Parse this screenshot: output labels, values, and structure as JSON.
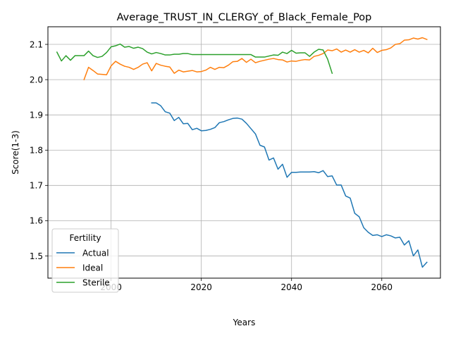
{
  "chart_data": {
    "type": "line",
    "title": "Average_TRUST_IN_CLERGY_of_Black_Female_Pop",
    "xlabel": "Years",
    "ylabel": "Score(1-3)",
    "xlim": [
      1986,
      2073
    ],
    "ylim": [
      1.437,
      2.15
    ],
    "xticks": [
      2000,
      2020,
      2040,
      2060
    ],
    "yticks": [
      1.5,
      1.6,
      1.7,
      1.8,
      1.9,
      2.0,
      2.1
    ],
    "grid": true,
    "legend": {
      "title": "Fertility",
      "placement": "lower-left"
    },
    "series": [
      {
        "name": "Actual",
        "color": "#1f77b4",
        "x": [
          2009,
          2010,
          2011,
          2012,
          2013,
          2014,
          2015,
          2016,
          2017,
          2018,
          2019,
          2020,
          2021,
          2022,
          2023,
          2024,
          2025,
          2026,
          2027,
          2028,
          2029,
          2030,
          2031,
          2032,
          2033,
          2034,
          2035,
          2036,
          2037,
          2038,
          2039,
          2040,
          2041,
          2042,
          2043,
          2044,
          2045,
          2046,
          2047,
          2048,
          2049,
          2050,
          2051,
          2052,
          2053,
          2054,
          2055,
          2056,
          2057,
          2058,
          2059,
          2060,
          2061,
          2062,
          2063,
          2064,
          2065,
          2066,
          2067,
          2068,
          2069,
          2070
        ],
        "y": [
          1.934,
          1.934,
          1.926,
          1.909,
          1.905,
          1.884,
          1.893,
          1.875,
          1.876,
          1.858,
          1.862,
          1.855,
          1.856,
          1.859,
          1.864,
          1.878,
          1.881,
          1.886,
          1.89,
          1.891,
          1.888,
          1.876,
          1.861,
          1.846,
          1.814,
          1.809,
          1.772,
          1.778,
          1.746,
          1.76,
          1.723,
          1.737,
          1.737,
          1.738,
          1.738,
          1.738,
          1.739,
          1.736,
          1.742,
          1.725,
          1.727,
          1.701,
          1.701,
          1.67,
          1.664,
          1.621,
          1.611,
          1.58,
          1.567,
          1.558,
          1.56,
          1.555,
          1.56,
          1.557,
          1.551,
          1.553,
          1.531,
          1.543,
          1.5,
          1.517,
          1.468,
          1.482
        ]
      },
      {
        "name": "Ideal",
        "color": "#ff7f0e",
        "x": [
          1994,
          1995,
          1996,
          1997,
          1998,
          1999,
          2000,
          2001,
          2002,
          2003,
          2004,
          2005,
          2006,
          2007,
          2008,
          2009,
          2010,
          2011,
          2012,
          2013,
          2014,
          2015,
          2016,
          2017,
          2018,
          2019,
          2020,
          2021,
          2022,
          2023,
          2024,
          2025,
          2026,
          2027,
          2028,
          2029,
          2030,
          2031,
          2032,
          2033,
          2034,
          2035,
          2036,
          2037,
          2038,
          2039,
          2040,
          2041,
          2042,
          2043,
          2044,
          2045,
          2046,
          2047,
          2048,
          2049,
          2050,
          2051,
          2052,
          2053,
          2054,
          2055,
          2056,
          2057,
          2058,
          2059,
          2060,
          2061,
          2062,
          2063,
          2064,
          2065,
          2066,
          2067,
          2068,
          2069,
          2070
        ],
        "y": [
          2.0,
          2.035,
          2.026,
          2.016,
          2.015,
          2.014,
          2.039,
          2.052,
          2.044,
          2.038,
          2.035,
          2.029,
          2.035,
          2.044,
          2.048,
          2.025,
          2.046,
          2.041,
          2.038,
          2.036,
          2.018,
          2.027,
          2.022,
          2.024,
          2.026,
          2.022,
          2.023,
          2.027,
          2.035,
          2.029,
          2.035,
          2.034,
          2.041,
          2.051,
          2.052,
          2.06,
          2.049,
          2.058,
          2.048,
          2.052,
          2.055,
          2.058,
          2.06,
          2.057,
          2.056,
          2.05,
          2.053,
          2.052,
          2.055,
          2.057,
          2.056,
          2.066,
          2.069,
          2.074,
          2.084,
          2.082,
          2.087,
          2.078,
          2.084,
          2.078,
          2.085,
          2.078,
          2.083,
          2.076,
          2.089,
          2.077,
          2.083,
          2.085,
          2.09,
          2.1,
          2.102,
          2.112,
          2.113,
          2.118,
          2.115,
          2.119,
          2.114
        ]
      },
      {
        "name": "Sterile",
        "color": "#2ca02c",
        "x": [
          1988,
          1989,
          1990,
          1991,
          1992,
          1993,
          1994,
          1995,
          1996,
          1997,
          1998,
          1999,
          2000,
          2001,
          2002,
          2003,
          2004,
          2005,
          2006,
          2007,
          2008,
          2009,
          2010,
          2011,
          2012,
          2013,
          2014,
          2015,
          2016,
          2017,
          2018,
          2019,
          2020,
          2021,
          2022,
          2023,
          2024,
          2025,
          2026,
          2027,
          2028,
          2029,
          2030,
          2031,
          2032,
          2033,
          2034,
          2035,
          2036,
          2037,
          2038,
          2039,
          2040,
          2041,
          2042,
          2043,
          2044,
          2045,
          2046,
          2047,
          2048,
          2049
        ],
        "y": [
          2.078,
          2.053,
          2.068,
          2.055,
          2.068,
          2.068,
          2.068,
          2.081,
          2.068,
          2.063,
          2.066,
          2.077,
          2.093,
          2.096,
          2.101,
          2.092,
          2.094,
          2.089,
          2.092,
          2.088,
          2.078,
          2.073,
          2.077,
          2.074,
          2.07,
          2.07,
          2.072,
          2.072,
          2.074,
          2.074,
          2.071,
          2.071,
          2.071,
          2.071,
          2.071,
          2.071,
          2.071,
          2.071,
          2.071,
          2.071,
          2.071,
          2.071,
          2.071,
          2.071,
          2.064,
          2.064,
          2.064,
          2.067,
          2.07,
          2.069,
          2.078,
          2.074,
          2.083,
          2.075,
          2.076,
          2.076,
          2.066,
          2.078,
          2.086,
          2.084,
          2.058,
          2.018
        ]
      }
    ]
  }
}
